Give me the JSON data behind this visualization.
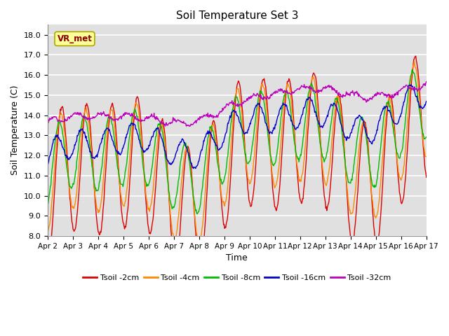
{
  "title": "Soil Temperature Set 3",
  "xlabel": "Time",
  "ylabel": "Soil Temperature (C)",
  "ylim": [
    8.0,
    18.5
  ],
  "yticks": [
    8.0,
    9.0,
    10.0,
    11.0,
    12.0,
    13.0,
    14.0,
    15.0,
    16.0,
    17.0,
    18.0
  ],
  "xtick_labels": [
    "Apr 2",
    "Apr 3",
    "Apr 4",
    "Apr 5",
    "Apr 6",
    "Apr 7",
    "Apr 8",
    "Apr 9",
    "Apr 10",
    "Apr 11",
    "Apr 12",
    "Apr 13",
    "Apr 14",
    "Apr 15",
    "Apr 16",
    "Apr 17"
  ],
  "series_colors": [
    "#dd0000",
    "#ff8800",
    "#00bb00",
    "#0000cc",
    "#bb00bb"
  ],
  "series_labels": [
    "Tsoil -2cm",
    "Tsoil -4cm",
    "Tsoil -8cm",
    "Tsoil -16cm",
    "Tsoil -32cm"
  ],
  "bg_color": "#e0e0e0",
  "legend_label": "VR_met",
  "legend_bg": "#ffff99",
  "legend_edge": "#aaa800",
  "n_points": 720,
  "days": 15
}
